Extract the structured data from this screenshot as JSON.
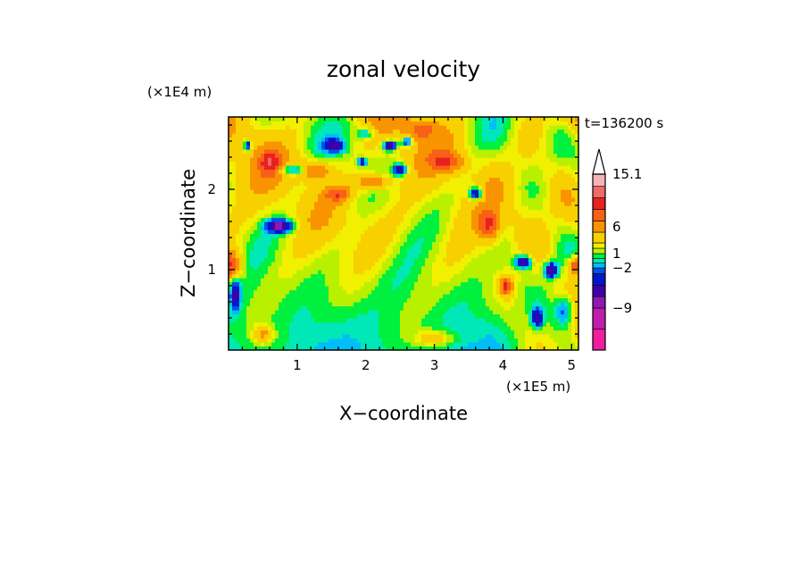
{
  "chart_data": {
    "type": "heatmap",
    "title": "zonal velocity",
    "xlabel": "X−coordinate",
    "ylabel": "Z−coordinate",
    "x_unit": "(×1E5 m)",
    "y_unit": "(×1E4 m)",
    "time_label": "t=136200 s",
    "xlim": [
      0,
      5.1
    ],
    "ylim": [
      0,
      2.9
    ],
    "x_ticks": [
      1,
      2,
      3,
      4,
      5
    ],
    "y_ticks": [
      1,
      2
    ],
    "colorbar": {
      "labels": [
        "15.1",
        "6",
        "1",
        "−2",
        "−9"
      ],
      "label_values": [
        15.1,
        6,
        1,
        -2,
        -9
      ],
      "levels": [
        -13,
        -11,
        -9,
        -7,
        -5,
        -3,
        -2,
        -1,
        0,
        1,
        2,
        3,
        5,
        7,
        9,
        11,
        13,
        15.1
      ],
      "colors": [
        "#ee1e9e",
        "#c01cae",
        "#8e18b0",
        "#4000a8",
        "#0018c8",
        "#0050f0",
        "#00bef8",
        "#00e8b8",
        "#00f040",
        "#b8f000",
        "#f0f000",
        "#f8d000",
        "#f89400",
        "#f86018",
        "#e82020",
        "#f06868",
        "#f8b4b4"
      ],
      "extend_max": true
    },
    "grid": false,
    "legend": "right"
  }
}
